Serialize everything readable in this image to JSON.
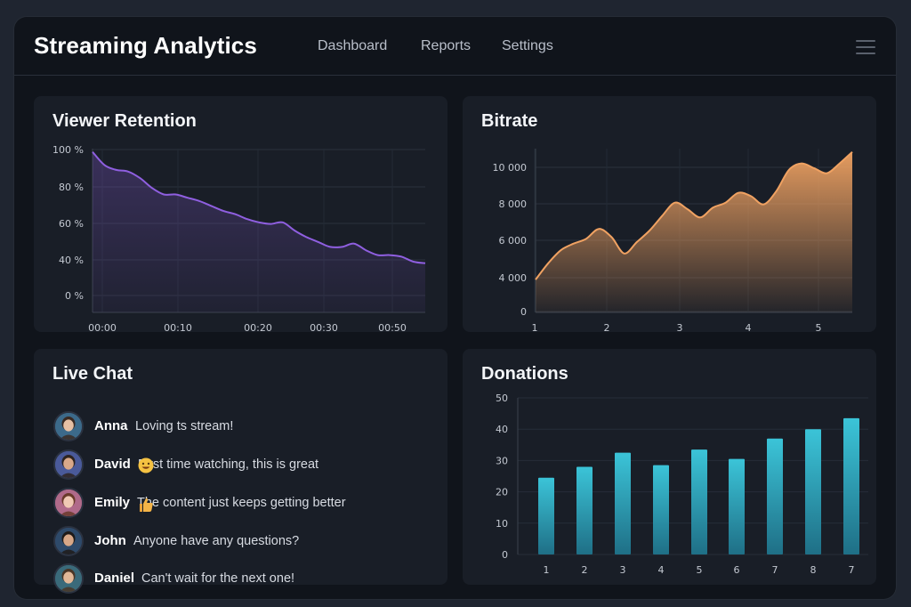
{
  "app": {
    "title": "Streaming Analytics"
  },
  "nav": {
    "items": [
      "Dashboard",
      "Reports",
      "Settings"
    ]
  },
  "colors": {
    "retention": "#8f5fe0",
    "bitrate": "#f0a262",
    "donations": "#3bc4d8"
  },
  "retention": {
    "title": "Viewer Retention",
    "chart_data": {
      "type": "area",
      "title": "Viewer Retention",
      "y_ticks": [
        "100 %",
        "80 %",
        "60 %",
        "40 %",
        "0 %"
      ],
      "x_ticks": [
        "00:00",
        "00:10",
        "00:20",
        "00:30",
        "00:50"
      ],
      "ylim": [
        0,
        100
      ],
      "series": [
        {
          "values": [
            98,
            90,
            87,
            86,
            82,
            76,
            72,
            72,
            70,
            68,
            65,
            62,
            60,
            57,
            55,
            54,
            55,
            50,
            46,
            43,
            40,
            40,
            42,
            38,
            35,
            35,
            34,
            31,
            30
          ]
        }
      ],
      "grid": true
    }
  },
  "bitrate": {
    "title": "Bitrate",
    "chart_data": {
      "type": "area",
      "title": "Bitrate",
      "y_ticks": [
        "10 000",
        "8 000",
        "6 000",
        "4 000",
        "0"
      ],
      "x_ticks": [
        "1",
        "2",
        "3",
        "4",
        "5"
      ],
      "ylim": [
        0,
        10000
      ],
      "series": [
        {
          "values": [
            2000,
            3000,
            3800,
            4200,
            4500,
            5100,
            4600,
            3600,
            4300,
            5000,
            5900,
            6700,
            6300,
            5800,
            6400,
            6700,
            7300,
            7100,
            6600,
            7400,
            8700,
            9100,
            8800,
            8500,
            9100,
            9800
          ]
        }
      ],
      "grid": true
    }
  },
  "chat": {
    "title": "Live Chat",
    "messages": [
      {
        "name": "Anna",
        "text": "Loving ts stream!",
        "emoji": "",
        "avatar_bg": "#3c6a8a",
        "skin": "#e6c0a4",
        "hair": "#3a2a22"
      },
      {
        "name": "David",
        "text": "First time watching, this is great",
        "emoji": "grin",
        "avatar_bg": "#4a5a9a",
        "skin": "#d9a98a",
        "hair": "#2e2420"
      },
      {
        "name": "Emily",
        "text": "The content just keeps getting better",
        "emoji": "thumbs",
        "avatar_bg": "#b06a8a",
        "skin": "#f0c9b4",
        "hair": "#6a3a2a"
      },
      {
        "name": "John",
        "text": "Anyone have any questions?",
        "emoji": "",
        "avatar_bg": "#2e4a6a",
        "skin": "#d8a888",
        "hair": "#1e1a18"
      },
      {
        "name": "Daniel",
        "text": "Can't wait for the next one!",
        "emoji": "",
        "avatar_bg": "#3a6a7a",
        "skin": "#e2b898",
        "hair": "#4a3526"
      }
    ]
  },
  "donations": {
    "title": "Donations",
    "chart_data": {
      "type": "bar",
      "title": "Donations",
      "categories": [
        "1",
        "2",
        "3",
        "4",
        "5",
        "6",
        "7",
        "8",
        "7"
      ],
      "values": [
        24.5,
        28,
        32.5,
        28.5,
        33.5,
        30.5,
        37,
        40,
        43.5
      ],
      "y_ticks": [
        "50",
        "40",
        "30",
        "20",
        "10",
        "0"
      ],
      "ylim": [
        0,
        50
      ],
      "grid": true
    }
  }
}
